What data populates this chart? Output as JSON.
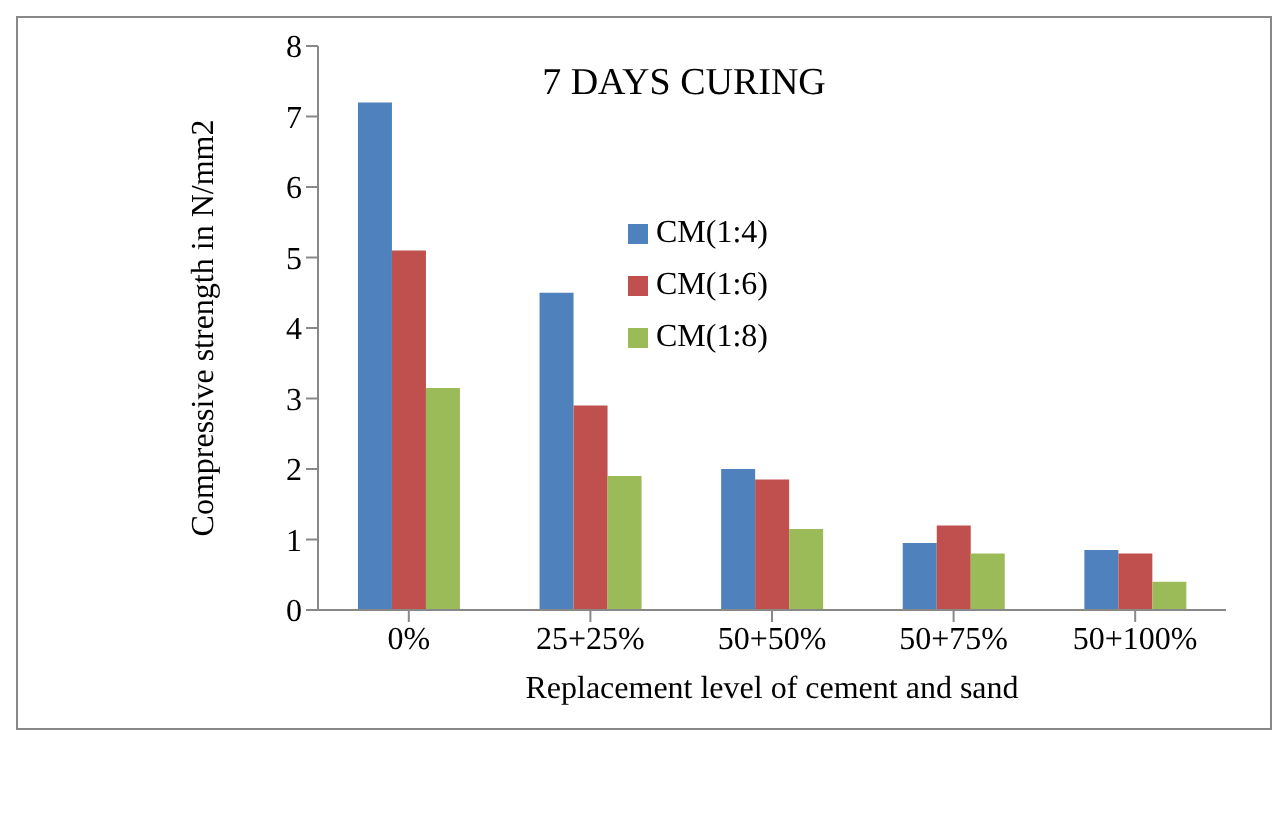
{
  "chart_data": {
    "type": "bar",
    "title": "7 DAYS CURING",
    "xlabel": "Replacement level of cement and sand",
    "ylabel": "Compressive strength in N/mm2",
    "categories": [
      "0%",
      "25+25%",
      "50+50%",
      "50+75%",
      "50+100%"
    ],
    "series": [
      {
        "name": "CM(1:4)",
        "color": "#4f81bd",
        "values": [
          7.2,
          4.5,
          2.0,
          0.95,
          0.85
        ]
      },
      {
        "name": "CM(1:6)",
        "color": "#c0504d",
        "values": [
          5.1,
          2.9,
          1.85,
          1.2,
          0.8
        ]
      },
      {
        "name": "CM(1:8)",
        "color": "#9bbb59",
        "values": [
          3.15,
          1.9,
          1.15,
          0.8,
          0.4
        ]
      }
    ],
    "ylim": [
      0,
      8
    ],
    "yticks": [
      0,
      1,
      2,
      3,
      4,
      5,
      6,
      7,
      8
    ],
    "grid": false,
    "legend": "top"
  }
}
